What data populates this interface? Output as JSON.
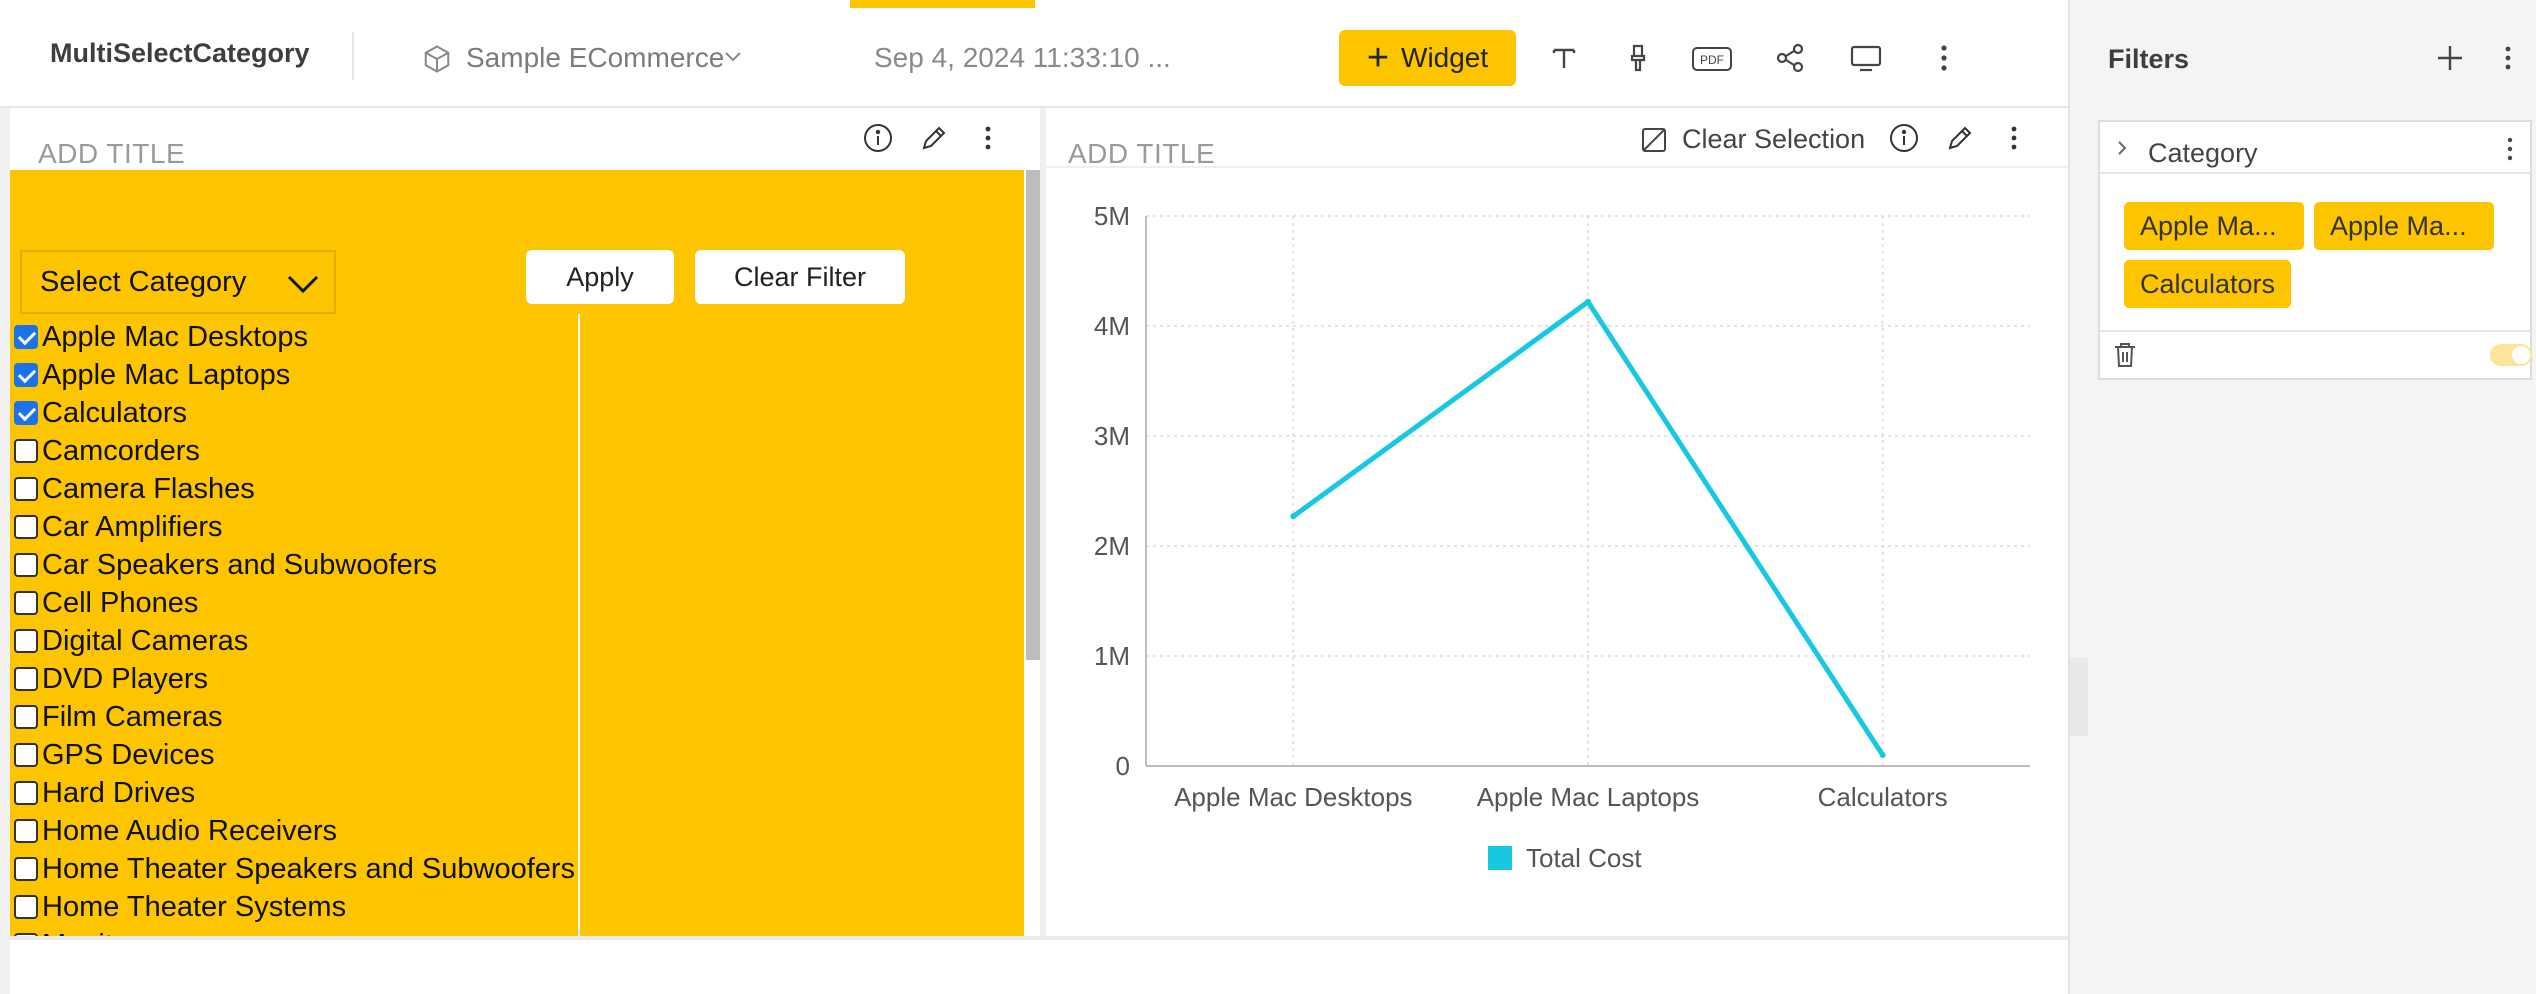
{
  "header": {
    "dashboard_title": "MultiSelectCategory",
    "datasource": "Sample ECommerce",
    "timestamp": "Sep 4, 2024 11:33:10 ...",
    "widget_button": "Widget",
    "accent_color": "#fcc500"
  },
  "filters": {
    "title": "Filters",
    "card": {
      "label": "Category",
      "chips": [
        "Apple Ma...",
        "Apple Ma...",
        "Calculators"
      ],
      "enabled": true
    }
  },
  "widget1": {
    "title": "ADD TITLE",
    "select_label": "Select Category",
    "apply_label": "Apply",
    "clear_label": "Clear Filter",
    "categories": [
      {
        "label": "Apple Mac Desktops",
        "checked": true
      },
      {
        "label": "Apple Mac Laptops",
        "checked": true
      },
      {
        "label": "Calculators",
        "checked": true
      },
      {
        "label": "Camcorders",
        "checked": false
      },
      {
        "label": "Camera Flashes",
        "checked": false
      },
      {
        "label": "Car Amplifiers",
        "checked": false
      },
      {
        "label": "Car Speakers and Subwoofers",
        "checked": false
      },
      {
        "label": "Cell Phones",
        "checked": false
      },
      {
        "label": "Digital Cameras",
        "checked": false
      },
      {
        "label": "DVD Players",
        "checked": false
      },
      {
        "label": "Film Cameras",
        "checked": false
      },
      {
        "label": "GPS Devices",
        "checked": false
      },
      {
        "label": "Hard Drives",
        "checked": false
      },
      {
        "label": "Home Audio Receivers",
        "checked": false
      },
      {
        "label": "Home Theater Speakers and Subwoofers",
        "checked": false
      },
      {
        "label": "Home Theater Systems",
        "checked": false
      },
      {
        "label": "Monitors",
        "checked": false
      }
    ]
  },
  "widget2": {
    "title": "ADD TITLE",
    "clear_selection": "Clear Selection"
  },
  "chart_data": {
    "type": "line",
    "categories": [
      "Apple Mac Desktops",
      "Apple Mac Laptops",
      "Calculators"
    ],
    "series": [
      {
        "name": "Total Cost",
        "values": [
          2270000,
          4220000,
          100000
        ],
        "color": "#17c8e0"
      }
    ],
    "ylim": [
      0,
      5000000
    ],
    "yticks": [
      0,
      1000000,
      2000000,
      3000000,
      4000000,
      5000000
    ],
    "ytick_labels": [
      "0",
      "1M",
      "2M",
      "3M",
      "4M",
      "5M"
    ],
    "grid": true,
    "legend": "bottom"
  }
}
